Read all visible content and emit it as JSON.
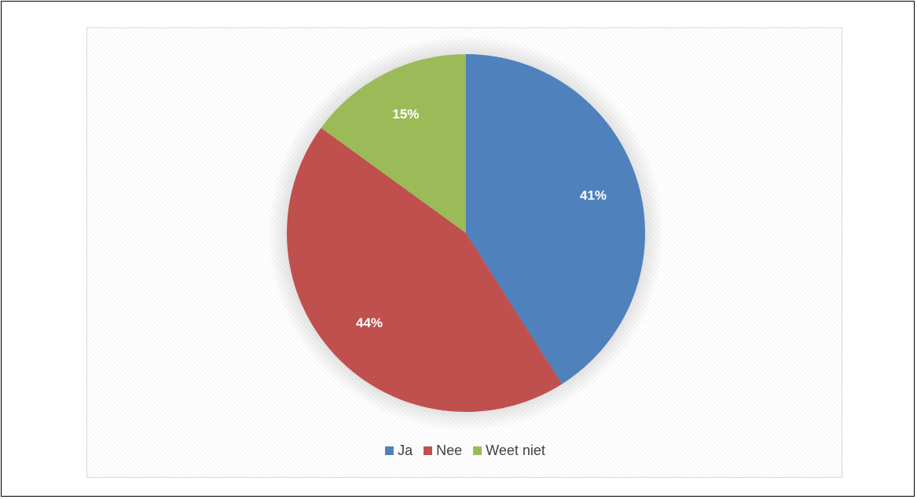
{
  "chart_data": {
    "type": "pie",
    "categories": [
      "Ja",
      "Nee",
      "Weet niet"
    ],
    "values": [
      41,
      44,
      15
    ],
    "value_labels": [
      "41%",
      "44%",
      "15%"
    ],
    "colors": [
      "#4f81bd",
      "#c0504d",
      "#9bbb59"
    ],
    "start_angle_deg": 0,
    "direction": "clockwise",
    "legend_position": "bottom",
    "title": ""
  },
  "legend": {
    "items": [
      {
        "label": "Ja",
        "color": "#4f81bd"
      },
      {
        "label": "Nee",
        "color": "#c0504d"
      },
      {
        "label": "Weet niet",
        "color": "#9bbb59"
      }
    ]
  }
}
